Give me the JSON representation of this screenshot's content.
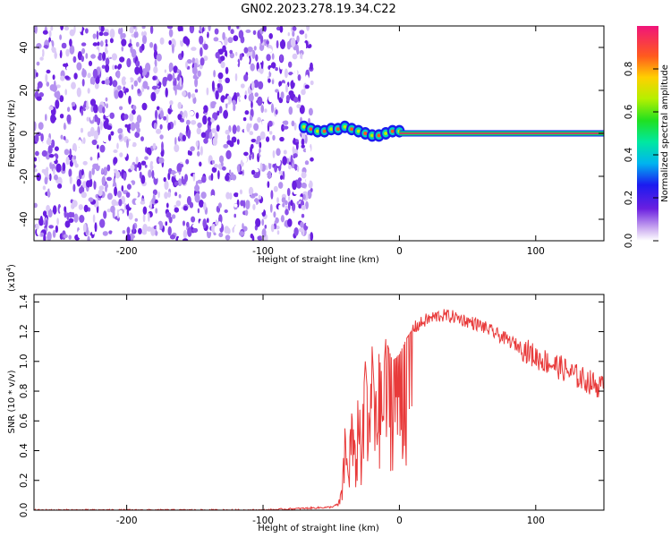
{
  "title": "GN02.2023.278.19.34.C22",
  "colors": {
    "spectrogram_dots": "#6a1fe0",
    "snr_line": "#e83a3a"
  },
  "chart_data": [
    {
      "type": "heatmap",
      "name": "spectrogram",
      "xlabel": "Height of straight line (km)",
      "ylabel": "Frequency (Hz)",
      "xlim": [
        -268,
        150
      ],
      "ylim": [
        -50,
        50
      ],
      "xticks": [
        -200,
        -100,
        0,
        100
      ],
      "yticks": [
        40,
        20,
        0,
        -20,
        -40
      ],
      "noise_region": {
        "x_from": -268,
        "x_to": -64,
        "level": 0.2
      },
      "signal_track": {
        "x": [
          -70,
          -65,
          -60,
          -55,
          -50,
          -45,
          -40,
          -35,
          -30,
          -25,
          -20,
          -15,
          -10,
          -5,
          0
        ],
        "y": [
          3,
          2,
          1,
          1,
          2,
          2,
          3,
          2,
          1,
          0,
          -1,
          -1,
          0,
          1,
          1
        ]
      },
      "carrier_line": {
        "x_from": 0,
        "x_to": 150,
        "y": 0,
        "level": 0.95
      },
      "colorbar": {
        "label": "Normalized spectral amplitude",
        "ticks": [
          0.0,
          0.2,
          0.4,
          0.6,
          0.8
        ],
        "range": [
          0,
          1
        ],
        "tick_labels": [
          "0.0",
          "0.2",
          "0.4",
          "0.6",
          "0.8"
        ]
      }
    },
    {
      "type": "line",
      "name": "snr",
      "xlabel": "Height of straight line (km)",
      "ylabel": "SNR (10 * v/v)",
      "multiplier": "(x10",
      "multiplier_exp": "4",
      "multiplier_close": ")",
      "xlim": [
        -268,
        150
      ],
      "ylim": [
        0,
        1.45
      ],
      "xticks": [
        -200,
        -100,
        0,
        100
      ],
      "yticks": [
        0.0,
        0.2,
        0.4,
        0.6,
        0.8,
        1.0,
        1.2,
        1.4
      ],
      "ytick_labels": [
        "0.0",
        "0.2",
        "0.4",
        "0.6",
        "0.8",
        "1.0",
        "1.2",
        "1.4"
      ],
      "series": [
        {
          "color": "#e83a3a",
          "x": [
            -268,
            -100,
            -50,
            -45,
            -42,
            -40,
            -38,
            -35,
            -32,
            -30,
            -28,
            -25,
            -22,
            -20,
            -18,
            -15,
            -12,
            -10,
            -5,
            0,
            5,
            10,
            20,
            30,
            40,
            50,
            60,
            70,
            80,
            90,
            100,
            110,
            120,
            130,
            140,
            150
          ],
          "y": [
            0.0,
            0.0,
            0.02,
            0.04,
            0.15,
            0.55,
            0.28,
            0.65,
            0.4,
            0.85,
            0.5,
            1.0,
            0.6,
            1.1,
            0.7,
            1.05,
            0.85,
            1.15,
            1.0,
            1.05,
            1.15,
            1.22,
            1.28,
            1.31,
            1.3,
            1.27,
            1.24,
            1.19,
            1.14,
            1.09,
            1.03,
            0.99,
            0.95,
            0.9,
            0.86,
            0.82
          ]
        }
      ]
    }
  ]
}
